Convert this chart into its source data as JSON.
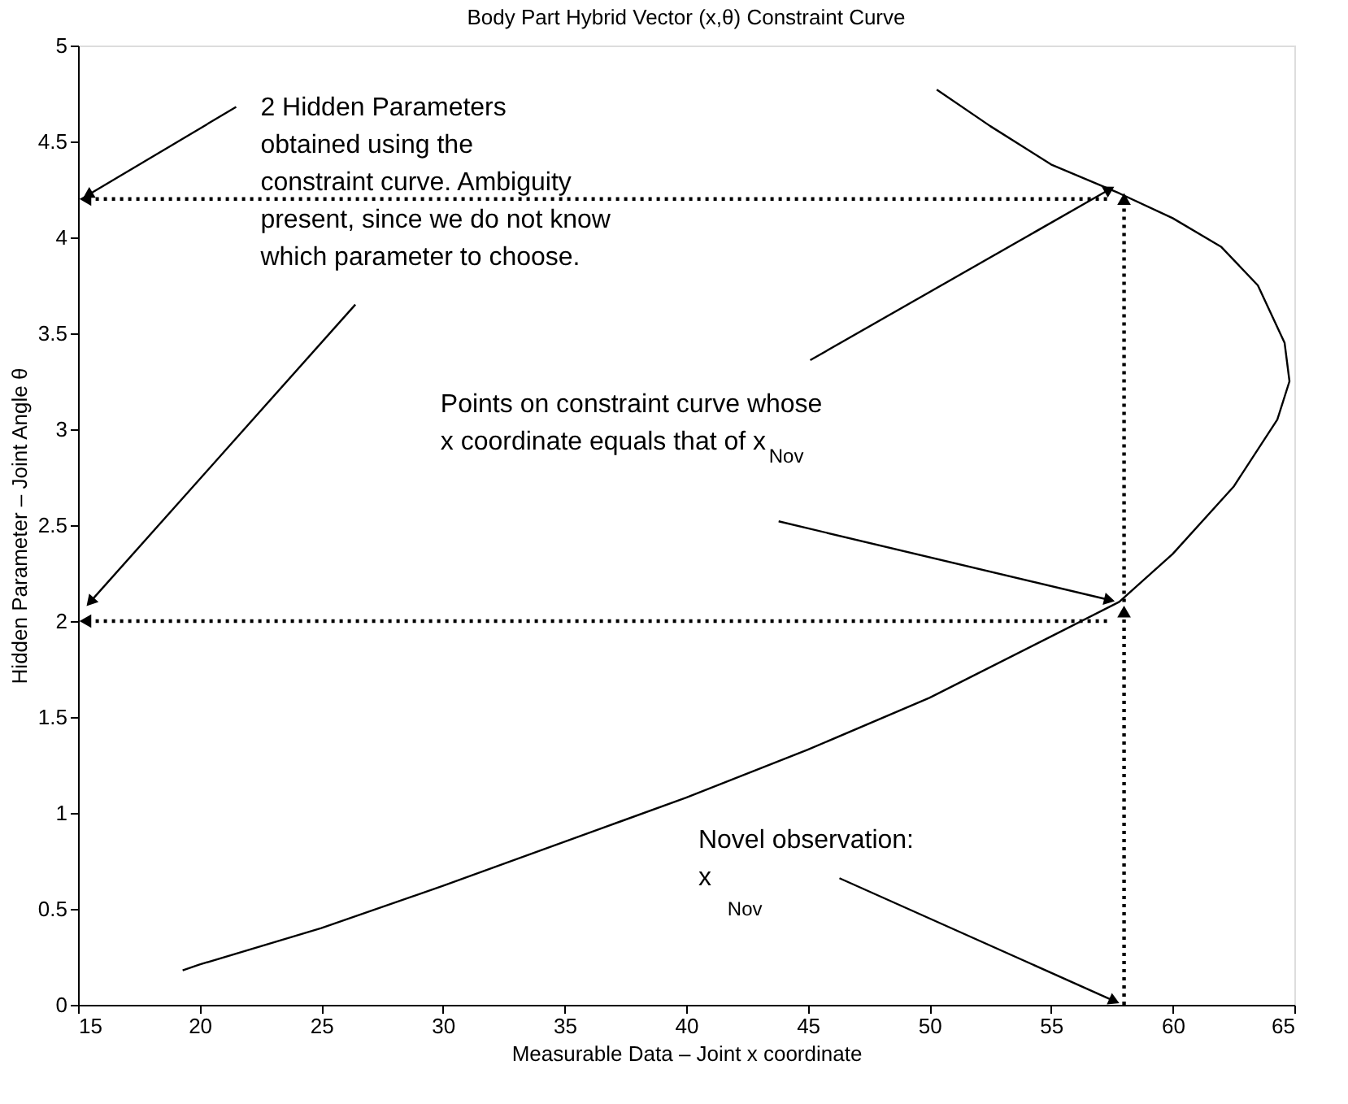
{
  "chart_data": {
    "type": "line",
    "title": "Body Part Hybrid Vector (x,θ) Constraint Curve",
    "xlabel": "Measurable Data – Joint x coordinate",
    "ylabel": "Hidden Parameter – Joint Angle θ",
    "xlim": [
      15,
      65
    ],
    "ylim": [
      0,
      5
    ],
    "xticks": [
      15,
      20,
      25,
      30,
      35,
      40,
      45,
      50,
      55,
      60,
      65
    ],
    "yticks": [
      0,
      0.5,
      1,
      1.5,
      2,
      2.5,
      3,
      3.5,
      4,
      4.5,
      5
    ],
    "series": [
      {
        "color": "#000000",
        "line_style": "solid",
        "x": [
          19.3,
          20,
          25,
          30,
          35,
          40,
          45,
          50,
          55,
          57.8,
          60,
          62.5,
          64.3,
          64.8,
          64.6,
          63.5,
          62,
          60,
          57.8,
          55,
          52.5,
          50.3
        ],
        "values": [
          0.18,
          0.21,
          0.4,
          0.62,
          0.85,
          1.08,
          1.33,
          1.6,
          1.92,
          2.1,
          2.35,
          2.7,
          3.05,
          3.25,
          3.45,
          3.75,
          3.95,
          4.1,
          4.23,
          4.38,
          4.58,
          4.77
        ]
      },
      {
        "color": "#000000",
        "line_style": "dotted",
        "x": [
          57.3,
          15.3
        ],
        "values": [
          4.2,
          4.2
        ]
      },
      {
        "color": "#000000",
        "line_style": "dotted",
        "x": [
          57.3,
          15.3
        ],
        "values": [
          2.0,
          2.0
        ]
      },
      {
        "color": "#000000",
        "line_style": "dotted",
        "x": [
          58,
          58
        ],
        "values": [
          0,
          2.05
        ]
      },
      {
        "color": "#000000",
        "line_style": "dotted",
        "x": [
          58,
          58
        ],
        "values": [
          2.1,
          4.2
        ]
      }
    ],
    "annotations": [
      {
        "text": "2 Hidden Parameters\nobtained using the\nconstraint curve. Ambiguity\npresent, since we do not know\nwhich parameter to choose.",
        "x": 15,
        "y": 4.2
      },
      {
        "text": "Points on constraint curve whose\nx coordinate equals that of x$_{Nov}$",
        "x": 57.8,
        "y": 4.23
      },
      {
        "text": "Novel observation:\nx$_{Nov}$",
        "x": 58,
        "y": 0
      }
    ]
  }
}
